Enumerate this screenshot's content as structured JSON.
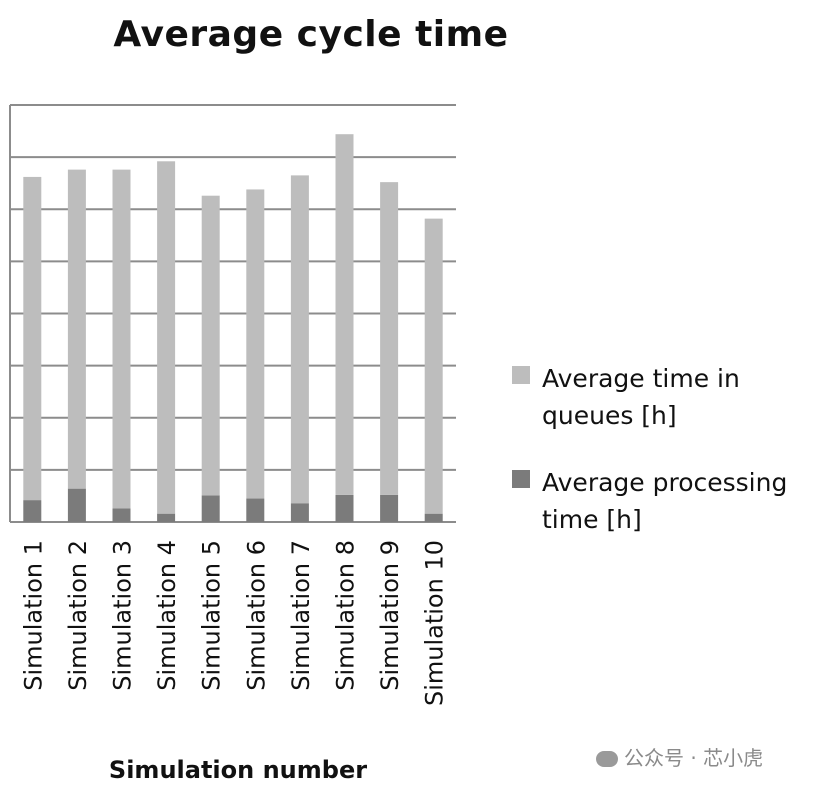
{
  "chart_data": {
    "type": "bar",
    "stacked": true,
    "title": "Average cycle time",
    "xlabel": "Simulation number",
    "ylabel": "",
    "categories": [
      "Simulation 1",
      "Simulation 2",
      "Simulation 3",
      "Simulation 4",
      "Simulation 5",
      "Simulation 6",
      "Simulation 7",
      "Simulation 8",
      "Simulation 9",
      "Simulation 10"
    ],
    "ylim": [
      0,
      8
    ],
    "grid": true,
    "y_tick_labels_shown": false,
    "legend_position": "right",
    "series": [
      {
        "name": "Average processing time [h]",
        "color": "#7b7b7b",
        "values": [
          0.42,
          0.64,
          0.26,
          0.16,
          0.51,
          0.45,
          0.36,
          0.52,
          0.52,
          0.16
        ]
      },
      {
        "name": "Average time in queues [h]",
        "color": "#bdbdbd",
        "values": [
          6.2,
          6.12,
          6.5,
          6.76,
          5.75,
          5.93,
          6.29,
          6.92,
          6.0,
          5.66
        ]
      }
    ]
  },
  "legend": {
    "items": [
      {
        "line1": "Average time in",
        "line2": "queues [h]",
        "color": "#bdbdbd"
      },
      {
        "line1": "Average processing",
        "line2": "time [h]",
        "color": "#7b7b7b"
      }
    ]
  },
  "watermark": {
    "text": "公众号 · 芯小虎"
  }
}
